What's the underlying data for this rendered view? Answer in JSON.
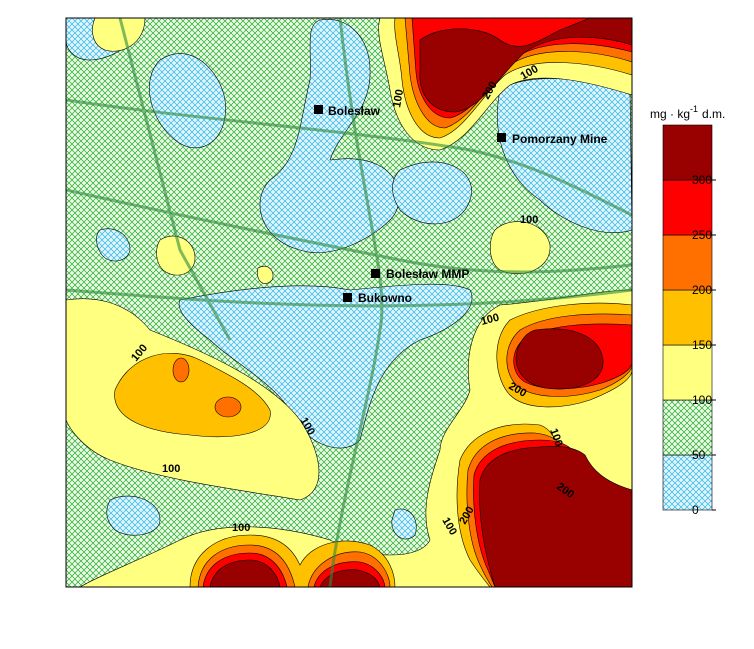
{
  "map": {
    "places": [
      "Bolesław",
      "Pomorzany Mine",
      "Bolesław MMP",
      "Bukowno"
    ],
    "contour_labels": [
      "100",
      "200",
      "100",
      "100",
      "100",
      "100",
      "100",
      "100",
      "200",
      "100",
      "200",
      "100",
      "200",
      "100"
    ],
    "legend": {
      "unit": "mg · kg",
      "exponent": "-1",
      "suffix": "d.m.",
      "ticks": [
        0,
        50,
        100,
        150,
        200,
        250,
        300
      ],
      "colors": [
        "url(#hb)",
        "url(#hg)",
        "#ffff80",
        "#ffc000",
        "#ff7000",
        "#ff0000",
        "#990000"
      ]
    }
  }
}
